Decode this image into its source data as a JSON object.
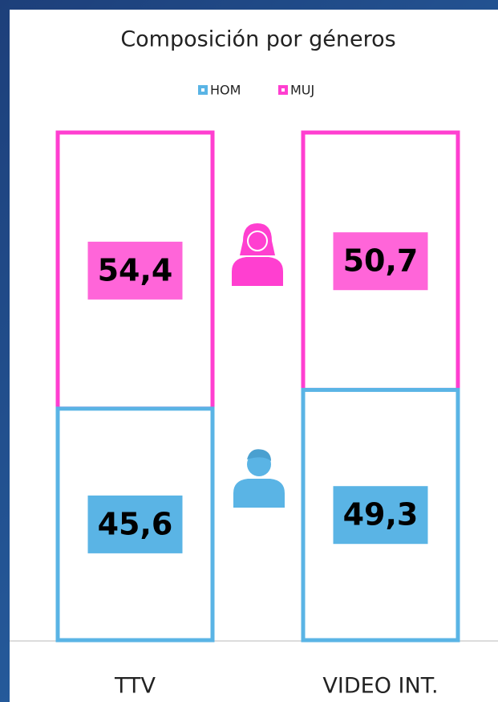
{
  "chart_data": {
    "type": "stacked_bar",
    "title": "Composición por géneros",
    "categories": [
      "TTV",
      "VIDEO INT."
    ],
    "series": [
      {
        "name": "HOM",
        "color": "#5ab4e5",
        "values": [
          45.6,
          49.3
        ],
        "value_labels": [
          "45,6",
          "49,3"
        ]
      },
      {
        "name": "MUJ",
        "color": "#ff3fd0",
        "values": [
          54.4,
          50.7
        ],
        "value_labels": [
          "54,4",
          "50,7"
        ]
      }
    ],
    "ylim": [
      0,
      100
    ],
    "legend": "top"
  }
}
